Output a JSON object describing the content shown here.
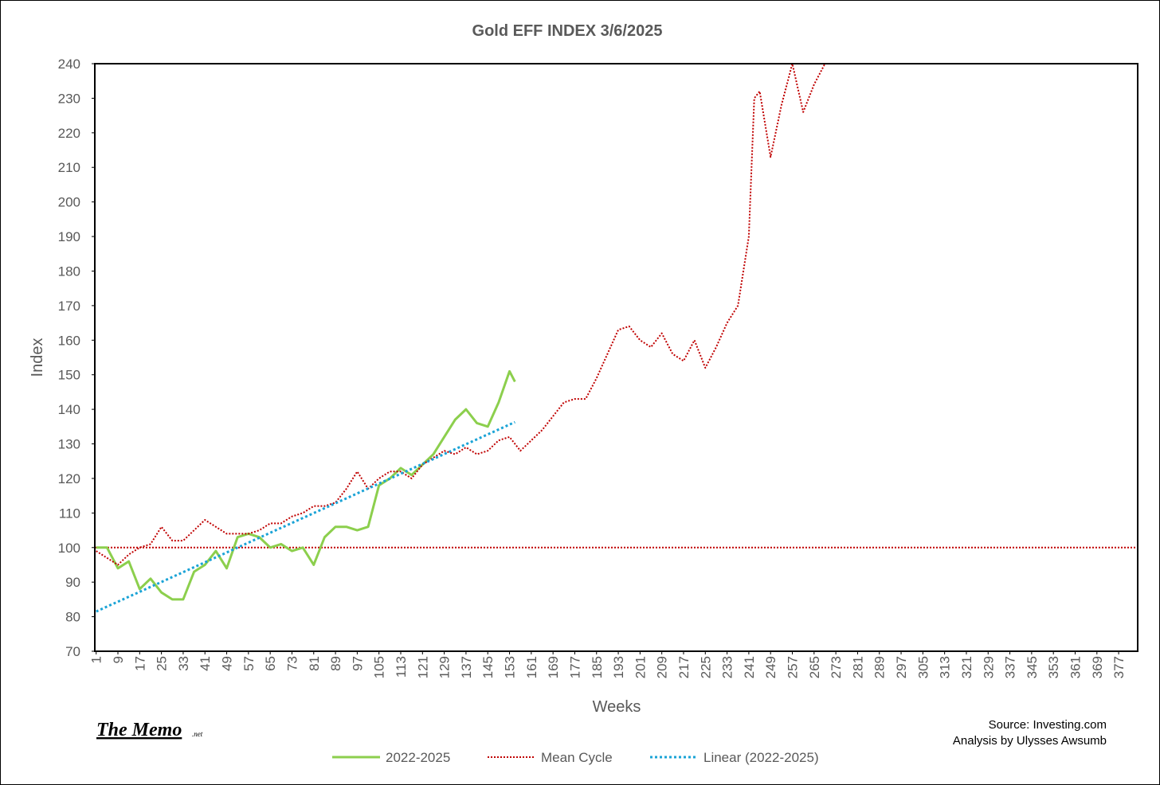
{
  "chart_data": {
    "type": "line",
    "title": "Gold EFF  INDEX 3/6/2025",
    "x_label": "Weeks",
    "y_label": "Index",
    "xlim": [
      0.5,
      384
    ],
    "ylim": [
      70,
      240
    ],
    "xticks": [
      1,
      9,
      17,
      25,
      33,
      41,
      49,
      57,
      65,
      73,
      81,
      89,
      97,
      105,
      113,
      121,
      129,
      137,
      145,
      153,
      161,
      169,
      177,
      185,
      193,
      201,
      209,
      217,
      225,
      233,
      241,
      249,
      257,
      265,
      273,
      281,
      289,
      297,
      305,
      313,
      321,
      329,
      337,
      345,
      353,
      361,
      369,
      377
    ],
    "yticks": [
      70,
      80,
      90,
      100,
      110,
      120,
      130,
      140,
      150,
      160,
      170,
      180,
      190,
      200,
      210,
      220,
      230,
      240
    ],
    "reference_line": {
      "value": 100,
      "color": "#c00000"
    },
    "series": [
      {
        "name": "2022-2025",
        "color": "#8ccf4d",
        "style": "solid",
        "x": [
          1,
          5,
          9,
          13,
          17,
          21,
          25,
          29,
          33,
          37,
          41,
          45,
          49,
          53,
          57,
          61,
          65,
          69,
          73,
          77,
          81,
          85,
          89,
          93,
          97,
          101,
          105,
          109,
          113,
          117,
          121,
          125,
          129,
          133,
          137,
          141,
          145,
          149,
          153,
          155
        ],
        "values": [
          100,
          100,
          94,
          96,
          88,
          91,
          87,
          85,
          85,
          93,
          95,
          99,
          94,
          103,
          104,
          103,
          100,
          101,
          99,
          100,
          95,
          103,
          106,
          106,
          105,
          106,
          118,
          120,
          123,
          121,
          124,
          127,
          132,
          137,
          140,
          136,
          135,
          142,
          151,
          148
        ]
      },
      {
        "name": "Mean Cycle",
        "color": "#c00000",
        "style": "dotted",
        "x": [
          1,
          5,
          9,
          13,
          17,
          21,
          25,
          29,
          33,
          37,
          41,
          45,
          49,
          53,
          57,
          61,
          65,
          69,
          73,
          77,
          81,
          85,
          89,
          93,
          97,
          101,
          105,
          109,
          113,
          117,
          121,
          125,
          129,
          133,
          137,
          141,
          145,
          149,
          153,
          157,
          161,
          165,
          169,
          173,
          177,
          181,
          185,
          189,
          193,
          197,
          201,
          205,
          209,
          213,
          217,
          221,
          225,
          229,
          233,
          237,
          241,
          243,
          245,
          249,
          253,
          257,
          261,
          265,
          269
        ],
        "values": [
          99,
          97,
          95,
          98,
          100,
          101,
          106,
          102,
          102,
          105,
          108,
          106,
          104,
          104,
          104,
          105,
          107,
          107,
          109,
          110,
          112,
          112,
          113,
          117,
          122,
          117,
          120,
          122,
          122,
          120,
          124,
          126,
          128,
          127,
          129,
          127,
          128,
          131,
          132,
          128,
          131,
          134,
          138,
          142,
          143,
          143,
          149,
          156,
          163,
          164,
          160,
          158,
          162,
          156,
          154,
          160,
          152,
          158,
          165,
          170,
          190,
          230,
          232,
          213,
          228,
          240,
          226,
          234,
          240
        ]
      },
      {
        "name": "Linear (2022-2025)",
        "color": "#1aa3d6",
        "style": "dotted",
        "x": [
          1,
          155
        ],
        "values": [
          81.5,
          136.3
        ]
      }
    ],
    "annotations": [
      "Source: Investing.com",
      "Analysis by Ulysses Awsumb"
    ],
    "logo": {
      "text": "The Memo",
      "suffix": ".net"
    }
  }
}
